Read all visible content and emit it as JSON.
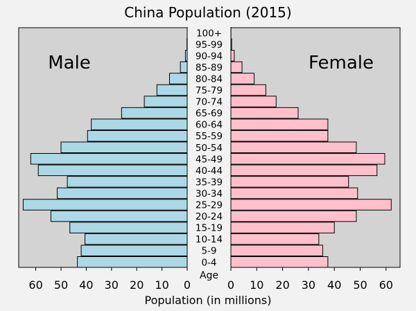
{
  "chart_data": {
    "type": "bar",
    "title": "China Population (2015)",
    "xlabel": "Population (in millions)",
    "category_axis_label": "Age",
    "categories": [
      "0-4",
      "5-9",
      "10-14",
      "15-19",
      "20-24",
      "25-29",
      "30-34",
      "35-39",
      "40-44",
      "45-49",
      "50-54",
      "55-59",
      "60-64",
      "65-69",
      "70-74",
      "75-79",
      "80-84",
      "85-89",
      "90-94",
      "95-99",
      "100+"
    ],
    "series": [
      {
        "name": "Male",
        "color": "#add8e6",
        "values": [
          43.5,
          42.0,
          40.5,
          46.5,
          54.0,
          65.0,
          51.5,
          47.5,
          59.0,
          62.0,
          50.0,
          39.5,
          38.0,
          26.0,
          17.0,
          12.0,
          7.0,
          2.7,
          0.7,
          0.1,
          0.01
        ]
      },
      {
        "name": "Female",
        "color": "#ffc0cb",
        "values": [
          37.5,
          35.5,
          34.0,
          40.0,
          48.5,
          62.0,
          49.0,
          45.5,
          56.5,
          59.5,
          48.5,
          37.5,
          37.5,
          26.0,
          17.5,
          13.5,
          9.0,
          4.3,
          1.3,
          0.3,
          0.03
        ]
      }
    ],
    "xlim": [
      0,
      65
    ],
    "ticks": [
      0,
      10,
      20,
      30,
      40,
      50,
      60
    ],
    "background": "#d3d3d3",
    "edge_color": "#000000"
  }
}
